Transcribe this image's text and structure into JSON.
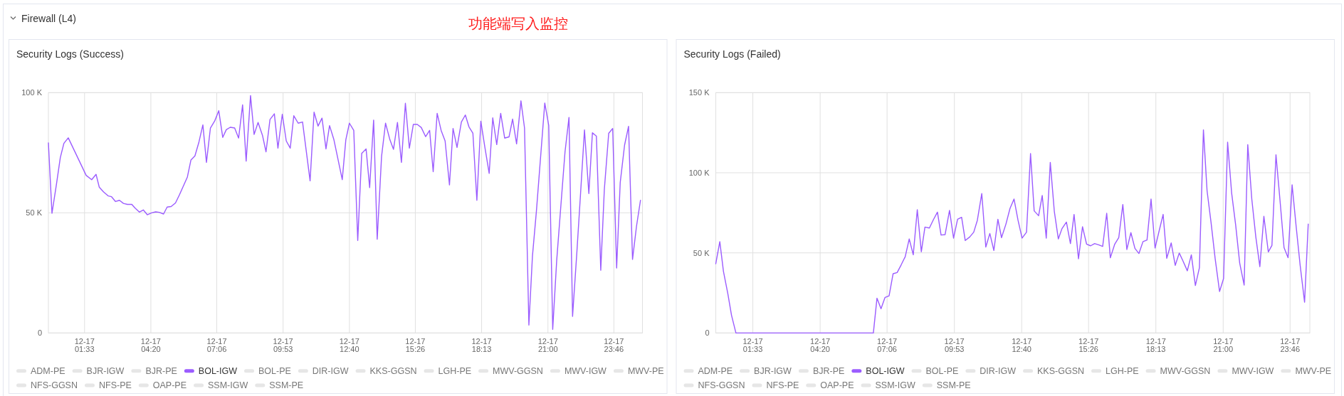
{
  "chart_data": [
    {
      "type": "other",
      "title": "Firewall (L4)",
      "annotations": [
        "功能端写入监控"
      ]
    },
    {
      "type": "line",
      "title": "Security Logs (Success)",
      "xlim": [
        "--12-17T00:02",
        "--12-18T00:58"
      ],
      "ylim": [
        0,
        100
      ],
      "xticks": [
        {
          "value": "--12-17T01:33",
          "label": "12-17\n01:33"
        },
        {
          "value": "--12-17T04:20",
          "label": "12-17\n04:20"
        },
        {
          "value": "--12-17T07:06",
          "label": "12-17\n07:06"
        },
        {
          "value": "--12-17T09:53",
          "label": "12-17\n09:53"
        },
        {
          "value": "--12-17T12:40",
          "label": "12-17\n12:40"
        },
        {
          "value": "--12-17T15:26",
          "label": "12-17\n15:26"
        },
        {
          "value": "--12-17T18:13",
          "label": "12-17\n18:13"
        },
        {
          "value": "--12-17T21:00",
          "label": "12-17\n21:00"
        },
        {
          "value": "--12-17T23:46",
          "label": "12-17\n23:46"
        }
      ],
      "yticks": [
        0,
        {
          "value": 50,
          "label": "50 K"
        },
        {
          "value": 100,
          "label": "100 K"
        }
      ],
      "grid": true,
      "legend": "bottom",
      "series": [
        {
          "name": "ADM-PE",
          "color": "#e6e6e6"
        },
        {
          "name": "BJR-IGW",
          "color": "#e6e6e6"
        },
        {
          "name": "BJR-PE",
          "color": "#e6e6e6"
        },
        {
          "name": "BOL-IGW",
          "color": "#9b5cff",
          "x": [
            "--12-17T00:02",
            "--12-17T00:11",
            "--12-17T00:22",
            "--12-17T00:32",
            "--12-17T00:41",
            "--12-17T00:52",
            "--12-17T01:20",
            "--12-17T01:37",
            "--12-17T01:51",
            "--12-17T02:02",
            "--12-17T02:10",
            "--12-17T02:21",
            "--12-17T02:33",
            "--12-17T02:41",
            "--12-17T02:51",
            "--12-17T03:01",
            "--12-17T03:11",
            "--12-17T03:21",
            "--12-17T03:32",
            "--12-17T03:40",
            "--12-17T03:51",
            "--12-17T04:01",
            "--12-17T04:11",
            "--12-17T04:22",
            "--12-17T04:32",
            "--12-17T04:41",
            "--12-17T04:52",
            "--12-17T05:01",
            "--12-17T05:11",
            "--12-17T05:22",
            "--12-17T05:32",
            "--12-17T05:41",
            "--12-17T05:52",
            "--12-17T06:01",
            "--12-17T06:11",
            "--12-17T06:21",
            "--12-17T06:31",
            "--12-17T06:40",
            "--12-17T06:50",
            "--12-17T07:01",
            "--12-17T07:11",
            "--12-17T07:21",
            "--12-17T07:30",
            "--12-17T07:40",
            "--12-17T07:51",
            "--12-17T08:01",
            "--12-17T08:11",
            "--12-17T08:20",
            "--12-17T08:31",
            "--12-17T08:40",
            "--12-17T08:50",
            "--12-17T09:01",
            "--12-17T09:10",
            "--12-17T09:20",
            "--12-17T09:31",
            "--12-17T09:40",
            "--12-17T09:51",
            "--12-17T10:01",
            "--12-17T10:11",
            "--12-17T10:20",
            "--12-17T10:31",
            "--12-17T10:42",
            "--12-17T11:01",
            "--12-17T11:11",
            "--12-17T11:21",
            "--12-17T11:31",
            "--12-17T11:41",
            "--12-17T11:50",
            "--12-17T12:01",
            "--12-17T12:22",
            "--12-17T12:31",
            "--12-17T12:40",
            "--12-17T12:51",
            "--12-17T13:01",
            "--12-17T13:11",
            "--12-17T13:22",
            "--12-17T13:31",
            "--12-17T13:41",
            "--12-17T13:50",
            "--12-17T14:01",
            "--12-17T14:11",
            "--12-17T14:22",
            "--12-17T14:31",
            "--12-17T14:41",
            "--12-17T14:51",
            "--12-17T15:01",
            "--12-17T15:11",
            "--12-17T15:21",
            "--12-17T15:31",
            "--12-17T15:41",
            "--12-17T15:52",
            "--12-17T16:02",
            "--12-17T16:11",
            "--12-17T16:21",
            "--12-17T16:31",
            "--12-17T16:41",
            "--12-17T16:52",
            "--12-17T17:01",
            "--12-17T17:11",
            "--12-17T17:22",
            "--12-17T17:32",
            "--12-17T17:41",
            "--12-17T17:51",
            "--12-17T18:01",
            "--12-17T18:11",
            "--12-17T18:21",
            "--12-17T18:32",
            "--12-17T18:41",
            "--12-17T18:51",
            "--12-17T19:01",
            "--12-17T19:11",
            "--12-17T19:22",
            "--12-17T19:31",
            "--12-17T19:41",
            "--12-17T19:52",
            "--12-17T20:01",
            "--12-17T20:12",
            "--12-17T20:21",
            "--12-17T20:31",
            "--12-17T20:52",
            "--12-17T21:02",
            "--12-17T21:12",
            "--12-17T21:22",
            "--12-17T21:32",
            "--12-17T21:43",
            "--12-17T21:53",
            "--12-17T22:02",
            "--12-17T22:13",
            "--12-17T22:22",
            "--12-17T22:32",
            "--12-17T22:43",
            "--12-17T22:52",
            "--12-17T23:02",
            "--12-17T23:13",
            "--12-17T23:22",
            "--12-17T23:33",
            "--12-17T23:43",
            "--12-17T23:53",
            "--12-18T00:02",
            "--12-18T00:13",
            "--12-18T00:23",
            "--12-18T00:33",
            "--12-18T00:43",
            "--12-18T00:53"
          ],
          "values": [
            79.1,
            49.8,
            61.6,
            73.0,
            78.9,
            81.2,
            71.5,
            65.6,
            63.8,
            66.0,
            60.7,
            58.7,
            57.0,
            56.7,
            54.7,
            55.2,
            53.9,
            53.5,
            53.5,
            52.0,
            50.3,
            51.2,
            49.2,
            50.0,
            50.4,
            50.2,
            49.5,
            52.4,
            52.6,
            54.1,
            57.5,
            60.8,
            64.9,
            72.0,
            73.7,
            79.4,
            86.6,
            71.0,
            85.3,
            88.3,
            92.5,
            81.4,
            84.6,
            85.6,
            85.3,
            81.1,
            94.9,
            71.5,
            98.8,
            82.6,
            87.6,
            82.3,
            75.4,
            88.8,
            91.2,
            76.9,
            91.0,
            79.9,
            76.9,
            90.4,
            87.3,
            87.8,
            63.3,
            91.9,
            86.1,
            89.4,
            76.6,
            86.3,
            80.4,
            63.8,
            80.4,
            87.3,
            84.3,
            38.5,
            74.7,
            76.6,
            60.5,
            88.6,
            39.0,
            73.5,
            87.3,
            80.4,
            76.4,
            87.6,
            71.0,
            95.6,
            76.9,
            86.8,
            86.8,
            85.5,
            81.7,
            84.3,
            67.1,
            91.4,
            84.3,
            79.9,
            61.6,
            85.1,
            77.2,
            87.8,
            90.7,
            85.8,
            83.1,
            55.2,
            88.1,
            77.4,
            66.4,
            89.5,
            78.4,
            91.4,
            81.1,
            81.6,
            89.0,
            78.7,
            96.6,
            85.3,
            3.3,
            32.1,
            50.8,
            95.7,
            86.3,
            1.5,
            30.1,
            51.8,
            75.4,
            89.7,
            6.9,
            34.0,
            57.7,
            84.5,
            58.0,
            83.3,
            81.9,
            26.1,
            59.7,
            83.1,
            85.1,
            27.0,
            62.6,
            78.2,
            86.0,
            30.6,
            44.4,
            55.2
          ]
        },
        {
          "name": "BOL-PE",
          "color": "#e6e6e6"
        },
        {
          "name": "DIR-IGW",
          "color": "#e6e6e6"
        },
        {
          "name": "KKS-GGSN",
          "color": "#e6e6e6"
        },
        {
          "name": "LGH-PE",
          "color": "#e6e6e6"
        },
        {
          "name": "MWV-GGSN",
          "color": "#e6e6e6"
        },
        {
          "name": "MWV-IGW",
          "color": "#e6e6e6"
        },
        {
          "name": "MWV-PE",
          "color": "#e6e6e6"
        },
        {
          "name": "NFS-GGSN",
          "color": "#e6e6e6"
        },
        {
          "name": "NFS-PE",
          "color": "#e6e6e6"
        },
        {
          "name": "OAP-PE",
          "color": "#e6e6e6"
        },
        {
          "name": "SSM-IGW",
          "color": "#e6e6e6"
        },
        {
          "name": "SSM-PE",
          "color": "#e6e6e6"
        }
      ]
    },
    {
      "type": "line",
      "title": "Security Logs (Failed)",
      "xlim": [
        "--12-17T00:01",
        "--12-18T00:35"
      ],
      "ylim": [
        0,
        150
      ],
      "xticks": [
        {
          "value": "--12-17T01:33",
          "label": "12-17\n01:33"
        },
        {
          "value": "--12-17T04:20",
          "label": "12-17\n04:20"
        },
        {
          "value": "--12-17T07:06",
          "label": "12-17\n07:06"
        },
        {
          "value": "--12-17T09:53",
          "label": "12-17\n09:53"
        },
        {
          "value": "--12-17T12:40",
          "label": "12-17\n12:40"
        },
        {
          "value": "--12-17T15:26",
          "label": "12-17\n15:26"
        },
        {
          "value": "--12-17T18:13",
          "label": "12-17\n18:13"
        },
        {
          "value": "--12-17T21:00",
          "label": "12-17\n21:00"
        },
        {
          "value": "--12-17T23:46",
          "label": "12-17\n23:46"
        }
      ],
      "yticks": [
        0,
        {
          "value": 50,
          "label": "50 K"
        },
        {
          "value": 100,
          "label": "100 K"
        },
        {
          "value": 150,
          "label": "150 K"
        }
      ],
      "grid": true,
      "legend": "bottom",
      "series": [
        {
          "name": "ADM-PE",
          "color": "#e6e6e6"
        },
        {
          "name": "BJR-IGW",
          "color": "#e6e6e6"
        },
        {
          "name": "BJR-PE",
          "color": "#e6e6e6"
        },
        {
          "name": "BOL-IGW",
          "color": "#9b5cff",
          "x": [
            "--12-17T00:01",
            "--12-17T00:11",
            "--12-17T00:20",
            "--12-17T00:31",
            "--12-17T00:40",
            "--12-17T00:51",
            "--12-17T06:32",
            "--12-17T06:41",
            "--12-17T06:51",
            "--12-17T07:01",
            "--12-17T07:11",
            "--12-17T07:21",
            "--12-17T07:31",
            "--12-17T07:41",
            "--12-17T07:51",
            "--12-17T08:01",
            "--12-17T08:11",
            "--12-17T08:21",
            "--12-17T08:31",
            "--12-17T08:40",
            "--12-17T08:51",
            "--12-17T09:01",
            "--12-17T09:11",
            "--12-17T09:20",
            "--12-17T09:30",
            "--12-17T09:41",
            "--12-17T09:51",
            "--12-17T10:01",
            "--12-17T10:11",
            "--12-17T10:20",
            "--12-17T10:31",
            "--12-17T10:41",
            "--12-17T10:50",
            "--12-17T11:01",
            "--12-17T11:11",
            "--12-17T11:21",
            "--12-17T11:31",
            "--12-17T11:41",
            "--12-17T11:50",
            "--12-17T12:01",
            "--12-17T12:11",
            "--12-17T12:21",
            "--12-17T12:31",
            "--12-17T12:41",
            "--12-17T12:52",
            "--12-17T13:02",
            "--12-17T13:11",
            "--12-17T13:22",
            "--12-17T13:31",
            "--12-17T13:41",
            "--12-17T13:51",
            "--12-17T14:01",
            "--12-17T14:11",
            "--12-17T14:20",
            "--12-17T14:31",
            "--12-17T14:41",
            "--12-17T14:50",
            "--12-17T15:01",
            "--12-17T15:11",
            "--12-17T15:21",
            "--12-17T15:31",
            "--12-17T15:41",
            "--12-17T15:51",
            "--12-17T16:01",
            "--12-17T16:11",
            "--12-17T16:20",
            "--12-17T16:31",
            "--12-17T16:41",
            "--12-17T16:51",
            "--12-17T17:01",
            "--12-17T17:11",
            "--12-17T17:21",
            "--12-17T17:31",
            "--12-17T17:41",
            "--12-17T17:51",
            "--12-17T18:01",
            "--12-17T18:11",
            "--12-17T18:21",
            "--12-17T18:31",
            "--12-17T18:40",
            "--12-17T18:51",
            "--12-17T19:01",
            "--12-17T19:11",
            "--12-17T19:20",
            "--12-17T19:31",
            "--12-17T19:41",
            "--12-17T19:51",
            "--12-17T20:01",
            "--12-17T20:11",
            "--12-17T20:20",
            "--12-17T20:30",
            "--12-17T20:40",
            "--12-17T20:51",
            "--12-17T21:01",
            "--12-17T21:11",
            "--12-17T21:21",
            "--12-17T21:31",
            "--12-17T21:41",
            "--12-17T21:52",
            "--12-17T22:01",
            "--12-17T22:11",
            "--12-17T22:21",
            "--12-17T22:31",
            "--12-17T22:41",
            "--12-17T22:52",
            "--12-17T23:01",
            "--12-17T23:11",
            "--12-17T23:21",
            "--12-17T23:31",
            "--12-17T23:41",
            "--12-17T23:51",
            "--12-18T00:01",
            "--12-18T00:11",
            "--12-18T00:22",
            "--12-18T00:31"
          ],
          "values": [
            43.2,
            57.0,
            38.5,
            24.4,
            11.1,
            0,
            0,
            21.7,
            15.1,
            22.2,
            23.2,
            37.0,
            37.7,
            42.5,
            47.6,
            58.7,
            48.8,
            76.9,
            50.7,
            66.1,
            65.5,
            70.7,
            75.4,
            61.1,
            61.4,
            76.5,
            59.2,
            71.0,
            72.2,
            57.7,
            59.9,
            62.9,
            70.3,
            87.0,
            53.6,
            62.1,
            51.5,
            71.0,
            59.5,
            68.0,
            77.7,
            83.6,
            70.3,
            59.2,
            62.9,
            112.0,
            76.2,
            73.2,
            85.8,
            59.2,
            106.5,
            75.9,
            58.7,
            65.1,
            69.2,
            55.8,
            74.0,
            46.3,
            66.3,
            55.5,
            54.4,
            55.8,
            55.0,
            54.0,
            74.7,
            46.9,
            55.5,
            59.6,
            80.2,
            52.1,
            62.6,
            52.8,
            49.6,
            57.0,
            58.0,
            83.6,
            53.0,
            63.6,
            74.0,
            46.6,
            56.2,
            42.2,
            49.9,
            45.1,
            38.8,
            48.8,
            29.6,
            40.7,
            126.8,
            88.8,
            68.8,
            46.6,
            25.9,
            34.0,
            119.1,
            87.3,
            67.3,
            43.6,
            29.9,
            117.6,
            83.6,
            59.9,
            41.4,
            72.8,
            50.6,
            54.7,
            111.2,
            82.8,
            53.3,
            47.0,
            92.5,
            66.6,
            42.2,
            19.2,
            68.0
          ]
        },
        {
          "name": "BOL-PE",
          "color": "#e6e6e6"
        },
        {
          "name": "DIR-IGW",
          "color": "#e6e6e6"
        },
        {
          "name": "KKS-GGSN",
          "color": "#e6e6e6"
        },
        {
          "name": "LGH-PE",
          "color": "#e6e6e6"
        },
        {
          "name": "MWV-GGSN",
          "color": "#e6e6e6"
        },
        {
          "name": "MWV-IGW",
          "color": "#e6e6e6"
        },
        {
          "name": "MWV-PE",
          "color": "#e6e6e6"
        },
        {
          "name": "NFS-GGSN",
          "color": "#e6e6e6"
        },
        {
          "name": "NFS-PE",
          "color": "#e6e6e6"
        },
        {
          "name": "OAP-PE",
          "color": "#e6e6e6"
        },
        {
          "name": "SSM-IGW",
          "color": "#e6e6e6"
        },
        {
          "name": "SSM-PE",
          "color": "#e6e6e6"
        }
      ]
    }
  ]
}
